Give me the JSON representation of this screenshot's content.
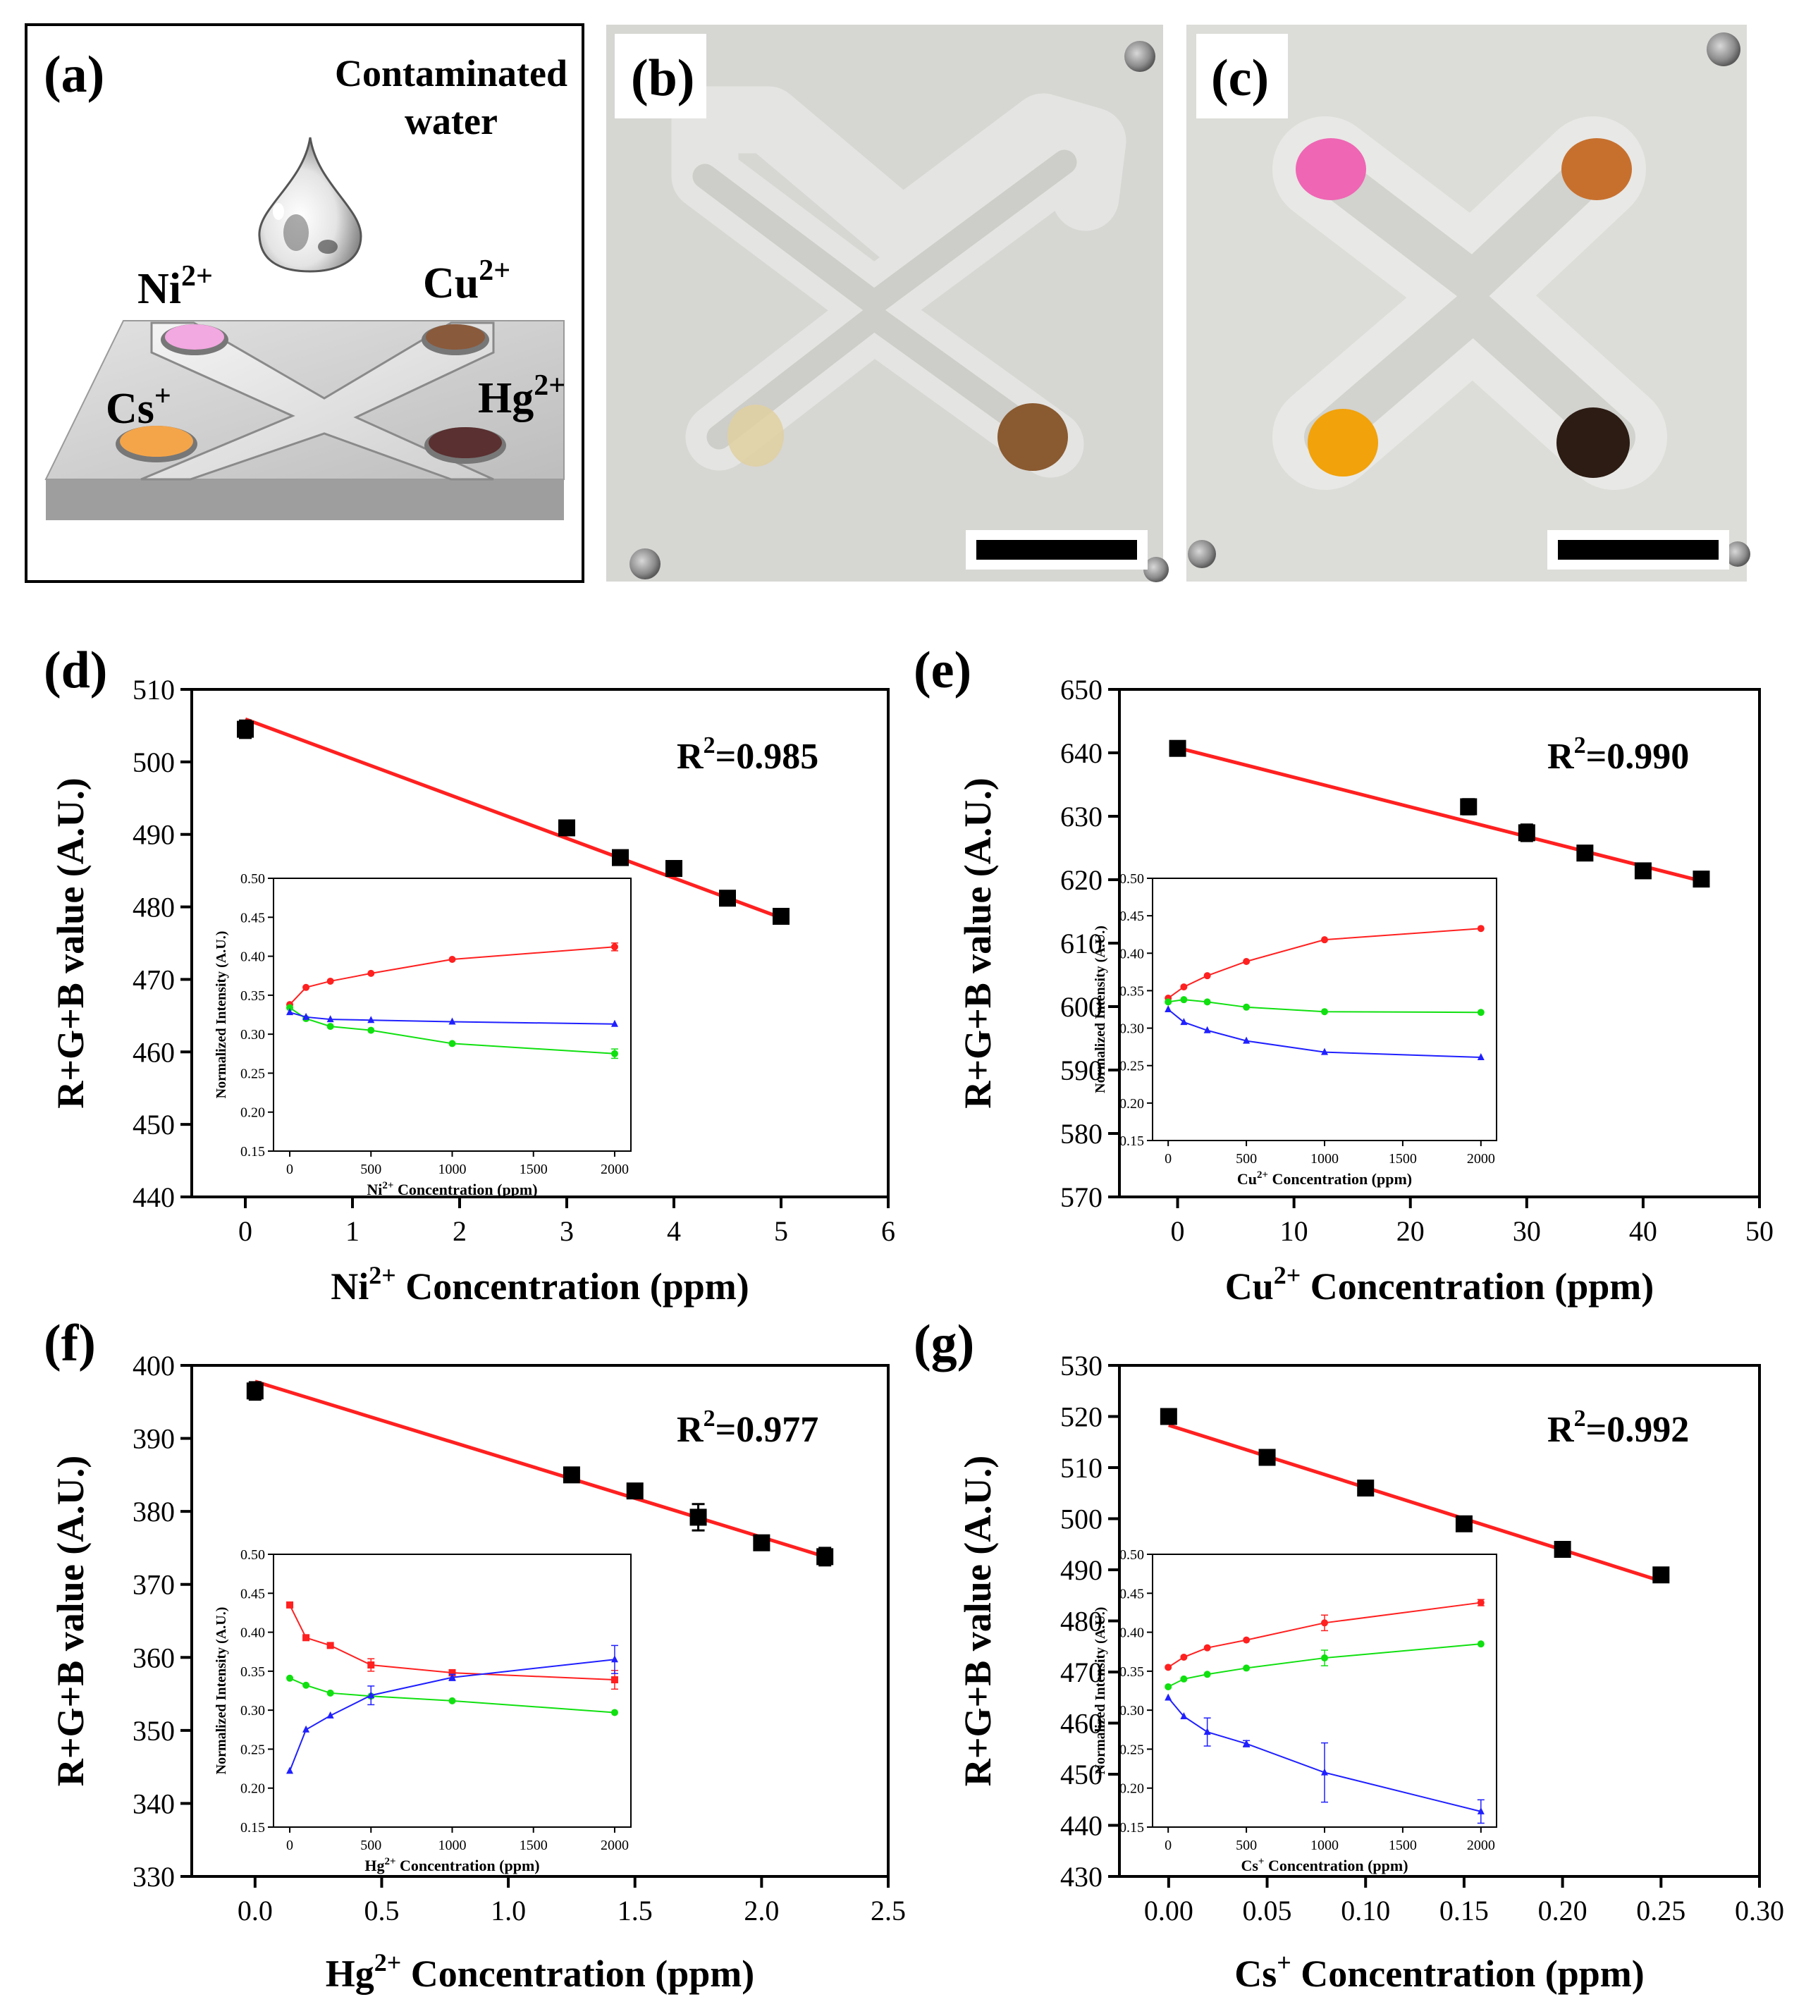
{
  "figure": {
    "panel_a": {
      "label": "(a)",
      "drop_label_line1": "Contaminated",
      "drop_label_line2": "water",
      "ions": [
        {
          "base": "Ni",
          "sup": "2+",
          "color": "#f2a8e0"
        },
        {
          "base": "Cu",
          "sup": "2+",
          "color": "#8a5a3c"
        },
        {
          "base": "Cs",
          "sup": "+",
          "color": "#f4a54a"
        },
        {
          "base": "Hg",
          "sup": "2+",
          "color": "#5a3030"
        }
      ]
    },
    "panel_b": {
      "label": "(b)",
      "spots": [
        {
          "name": "top-left",
          "color": "#cfcfcb"
        },
        {
          "name": "top-right",
          "color": "#cfcfcb"
        },
        {
          "name": "bottom-left",
          "color": "#e0d0a0"
        },
        {
          "name": "bottom-right",
          "color": "#8a5a30"
        }
      ]
    },
    "panel_c": {
      "label": "(c)",
      "spots": [
        {
          "name": "top-left",
          "color": "#ef66b4"
        },
        {
          "name": "top-right",
          "color": "#c7702e"
        },
        {
          "name": "bottom-left",
          "color": "#f2a20a"
        },
        {
          "name": "bottom-right",
          "color": "#2c1c14"
        }
      ]
    },
    "colors": {
      "red": "#ff2020",
      "green": "#10e010",
      "blue": "#2020ff",
      "black": "#000000"
    }
  },
  "chart_data": [
    {
      "panel": "(d)",
      "type": "scatter",
      "ylabel": "R+G+B value (A.U.)",
      "xlabel": {
        "base": "Ni",
        "sup": "2+",
        "rest": " Concentration (ppm)"
      },
      "xlim": [
        -0.5,
        6
      ],
      "ylim": [
        440,
        510
      ],
      "xticks": [
        0,
        1,
        2,
        3,
        4,
        5,
        6
      ],
      "yticks": [
        440,
        450,
        460,
        470,
        480,
        490,
        500,
        510
      ],
      "r2": {
        "base": "R",
        "sup": "2",
        "rest": "=0.985"
      },
      "points": [
        {
          "x": 0,
          "y": 504.5,
          "err": 1.2
        },
        {
          "x": 3,
          "y": 490.9,
          "err": 0.5
        },
        {
          "x": 3.5,
          "y": 486.8,
          "err": 0.5
        },
        {
          "x": 4,
          "y": 485.3,
          "err": 1.0
        },
        {
          "x": 4.5,
          "y": 481.2,
          "err": 0.5
        },
        {
          "x": 5,
          "y": 478.7,
          "err": 0.5
        }
      ],
      "fit": {
        "x": [
          0,
          5
        ],
        "y": [
          505.9,
          478.5
        ]
      },
      "inset": {
        "ylabel": "Normalized Intensity (A.U.)",
        "xlabel": {
          "base": "Ni",
          "sup": "2+",
          "rest": " Concentration (ppm)"
        },
        "xlim": [
          -100,
          2100
        ],
        "ylim": [
          0.15,
          0.5
        ],
        "xticks": [
          0,
          500,
          1000,
          1500,
          2000
        ],
        "yticks": [
          0.15,
          0.2,
          0.25,
          0.3,
          0.35,
          0.4,
          0.45,
          0.5
        ],
        "x": [
          0,
          100,
          250,
          500,
          1000,
          2000
        ],
        "series": [
          {
            "name": "R",
            "color": "red",
            "marker": "circle",
            "values": [
              0.338,
              0.36,
              0.368,
              0.378,
              0.396,
              0.412
            ],
            "err": [
              0.002,
              0.002,
              0.002,
              0.002,
              0.002,
              0.005
            ]
          },
          {
            "name": "G",
            "color": "green",
            "marker": "circle",
            "values": [
              0.334,
              0.32,
              0.31,
              0.305,
              0.288,
              0.275
            ],
            "err": [
              0.002,
              0.002,
              0.002,
              0.002,
              0.002,
              0.006
            ]
          },
          {
            "name": "B",
            "color": "blue",
            "marker": "triangle",
            "values": [
              0.328,
              0.322,
              0.319,
              0.318,
              0.316,
              0.313
            ],
            "err": [
              0.002,
              0.002,
              0.002,
              0.002,
              0.002,
              0.002
            ]
          }
        ]
      }
    },
    {
      "panel": "(e)",
      "type": "scatter",
      "ylabel": "R+G+B value (A.U.)",
      "xlabel": {
        "base": "Cu",
        "sup": "2+",
        "rest": " Concentration (ppm)"
      },
      "xlim": [
        -5,
        50
      ],
      "ylim": [
        570,
        650
      ],
      "xticks": [
        0,
        10,
        20,
        30,
        40,
        50
      ],
      "yticks": [
        570,
        580,
        590,
        600,
        610,
        620,
        630,
        640,
        650
      ],
      "r2": {
        "base": "R",
        "sup": "2",
        "rest": "=0.990"
      },
      "points": [
        {
          "x": 0,
          "y": 640.7,
          "err": 0.5
        },
        {
          "x": 25,
          "y": 631.5,
          "err": 1.2
        },
        {
          "x": 30,
          "y": 627.4,
          "err": 1.3
        },
        {
          "x": 35,
          "y": 624.2,
          "err": 0.5
        },
        {
          "x": 40,
          "y": 621.4,
          "err": 0.5
        },
        {
          "x": 45,
          "y": 620.1,
          "err": 0.5
        }
      ],
      "fit": {
        "x": [
          0,
          45
        ],
        "y": [
          640.8,
          619.8
        ]
      },
      "inset": {
        "ylabel": "Normalized Intensity (A.U.)",
        "xlabel": {
          "base": "Cu",
          "sup": "2+",
          "rest": " Concentration (ppm)"
        },
        "xlim": [
          -100,
          2100
        ],
        "ylim": [
          0.15,
          0.5
        ],
        "xticks": [
          0,
          500,
          1000,
          1500,
          2000
        ],
        "yticks": [
          0.15,
          0.2,
          0.25,
          0.3,
          0.35,
          0.4,
          0.45,
          0.5
        ],
        "x": [
          0,
          100,
          250,
          500,
          1000,
          2000
        ],
        "series": [
          {
            "name": "R",
            "color": "red",
            "marker": "circle",
            "values": [
              0.34,
              0.355,
              0.37,
              0.389,
              0.418,
              0.433
            ],
            "err": [
              0.002,
              0.002,
              0.002,
              0.002,
              0.002,
              0.002
            ]
          },
          {
            "name": "G",
            "color": "green",
            "marker": "circle",
            "values": [
              0.335,
              0.338,
              0.335,
              0.328,
              0.322,
              0.321
            ],
            "err": [
              0.002,
              0.002,
              0.002,
              0.002,
              0.002,
              0.002
            ]
          },
          {
            "name": "B",
            "color": "blue",
            "marker": "triangle",
            "values": [
              0.325,
              0.308,
              0.297,
              0.283,
              0.268,
              0.261
            ],
            "err": [
              0.002,
              0.002,
              0.002,
              0.002,
              0.002,
              0.002
            ]
          }
        ]
      }
    },
    {
      "panel": "(f)",
      "type": "scatter",
      "ylabel": "R+G+B value (A.U.)",
      "xlabel": {
        "base": "Hg",
        "sup": "2+",
        "rest": " Concentration (ppm)"
      },
      "xlim": [
        -0.25,
        2.5
      ],
      "ylim": [
        330,
        400
      ],
      "xticks": [
        0.0,
        0.5,
        1.0,
        1.5,
        2.0,
        2.5
      ],
      "yticks": [
        330,
        340,
        350,
        360,
        370,
        380,
        390,
        400
      ],
      "xtick_decimals": 1,
      "r2": {
        "base": "R",
        "sup": "2",
        "rest": "=0.977"
      },
      "points": [
        {
          "x": 0,
          "y": 396.5,
          "err": 1.2
        },
        {
          "x": 1.25,
          "y": 385.0,
          "err": 0.5
        },
        {
          "x": 1.5,
          "y": 382.8,
          "err": 0.5
        },
        {
          "x": 1.75,
          "y": 379.2,
          "err": 1.8
        },
        {
          "x": 2.0,
          "y": 375.7,
          "err": 0.7
        },
        {
          "x": 2.25,
          "y": 373.8,
          "err": 1.2
        }
      ],
      "fit": {
        "x": [
          0,
          2.25
        ],
        "y": [
          397.8,
          373.8
        ]
      },
      "inset": {
        "ylabel": "Normalized Intensity (A.U.)",
        "xlabel": {
          "base": "Hg",
          "sup": "2+",
          "rest": " Concentration (ppm)"
        },
        "xlim": [
          -100,
          2100
        ],
        "ylim": [
          0.15,
          0.5
        ],
        "xticks": [
          0,
          500,
          1000,
          1500,
          2000
        ],
        "yticks": [
          0.15,
          0.2,
          0.25,
          0.3,
          0.35,
          0.4,
          0.45,
          0.5
        ],
        "x": [
          0,
          100,
          250,
          500,
          1000,
          2000
        ],
        "series": [
          {
            "name": "R",
            "color": "red",
            "marker": "square",
            "values": [
              0.435,
              0.393,
              0.383,
              0.358,
              0.348,
              0.339
            ],
            "err": [
              0.002,
              0.002,
              0.002,
              0.008,
              0.004,
              0.012
            ]
          },
          {
            "name": "G",
            "color": "green",
            "marker": "circle",
            "values": [
              0.341,
              0.332,
              0.322,
              0.318,
              0.312,
              0.297
            ],
            "err": [
              0.002,
              0.002,
              0.002,
              0.002,
              0.002,
              0.002
            ]
          },
          {
            "name": "B",
            "color": "blue",
            "marker": "triangle",
            "values": [
              0.222,
              0.275,
              0.293,
              0.319,
              0.342,
              0.365
            ],
            "err": [
              0.002,
              0.002,
              0.002,
              0.012,
              0.004,
              0.018
            ]
          }
        ]
      }
    },
    {
      "panel": "(g)",
      "type": "scatter",
      "ylabel": "R+G+B value (A.U.)",
      "xlabel": {
        "base": "Cs",
        "sup": "+",
        "rest": " Concentration (ppm)"
      },
      "xlim": [
        -0.025,
        0.3
      ],
      "ylim": [
        430,
        530
      ],
      "xticks": [
        0.0,
        0.05,
        0.1,
        0.15,
        0.2,
        0.25,
        0.3
      ],
      "yticks": [
        430,
        440,
        450,
        460,
        470,
        480,
        490,
        500,
        510,
        520,
        530
      ],
      "xtick_decimals": 2,
      "r2": {
        "base": "R",
        "sup": "2",
        "rest": "=0.992"
      },
      "points": [
        {
          "x": 0,
          "y": 520.0,
          "err": 0.5
        },
        {
          "x": 0.05,
          "y": 512.0,
          "err": 0.5
        },
        {
          "x": 0.1,
          "y": 506.0,
          "err": 0.5
        },
        {
          "x": 0.15,
          "y": 499.0,
          "err": 0.5
        },
        {
          "x": 0.2,
          "y": 494.0,
          "err": 0.5
        },
        {
          "x": 0.25,
          "y": 489.0,
          "err": 0.5
        }
      ],
      "fit": {
        "x": [
          0,
          0.25
        ],
        "y": [
          518.3,
          487.8
        ]
      },
      "inset": {
        "ylabel": "Normalized Intensity (A.U.)",
        "xlabel": {
          "base": "Cs",
          "sup": "+",
          "rest": " Concentration (ppm)"
        },
        "xlim": [
          -100,
          2100
        ],
        "ylim": [
          0.15,
          0.5
        ],
        "xticks": [
          0,
          500,
          1000,
          1500,
          2000
        ],
        "yticks": [
          0.15,
          0.2,
          0.25,
          0.3,
          0.35,
          0.4,
          0.45,
          0.5
        ],
        "x": [
          0,
          100,
          250,
          500,
          1000,
          2000
        ],
        "series": [
          {
            "name": "R",
            "color": "red",
            "marker": "circle",
            "values": [
              0.355,
              0.368,
              0.38,
              0.39,
              0.412,
              0.438
            ],
            "err": [
              0.002,
              0.002,
              0.002,
              0.002,
              0.01,
              0.004
            ]
          },
          {
            "name": "G",
            "color": "green",
            "marker": "circle",
            "values": [
              0.33,
              0.34,
              0.346,
              0.354,
              0.367,
              0.385
            ],
            "err": [
              0.002,
              0.002,
              0.002,
              0.002,
              0.01,
              0.002
            ]
          },
          {
            "name": "B",
            "color": "blue",
            "marker": "triangle",
            "values": [
              0.316,
              0.292,
              0.272,
              0.257,
              0.22,
              0.17
            ],
            "err": [
              0.002,
              0.002,
              0.018,
              0.004,
              0.038,
              0.015
            ]
          }
        ]
      }
    }
  ]
}
